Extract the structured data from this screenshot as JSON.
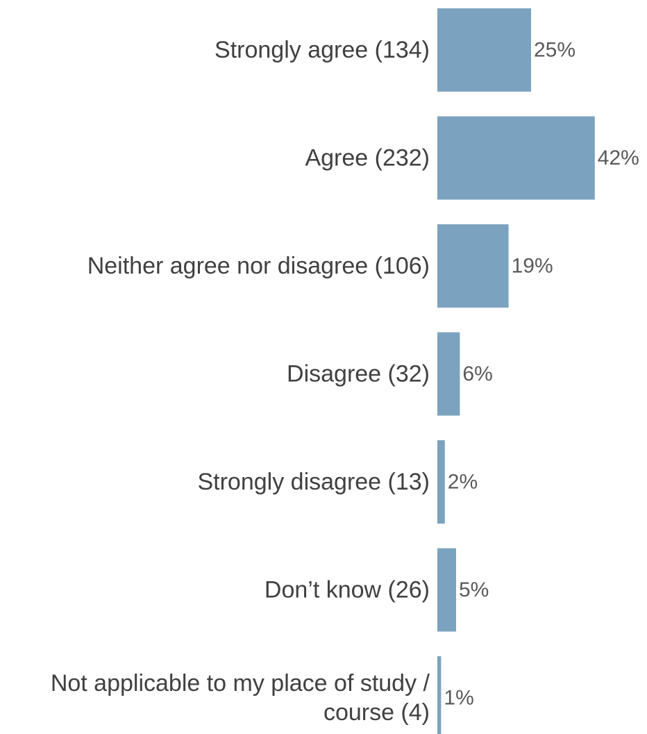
{
  "chart_data": {
    "type": "bar",
    "orientation": "horizontal",
    "bar_color": "#7ba3bf",
    "label_color": "#404040",
    "value_label_color": "#595959",
    "categories": [
      [
        "Strongly agree (134)"
      ],
      [
        "Agree (232)"
      ],
      [
        "Neither agree nor disagree (106)"
      ],
      [
        "Disagree (32)"
      ],
      [
        "Strongly disagree (13)"
      ],
      [
        "Don’t know (26)"
      ],
      [
        "Not applicable to my place of study /",
        "course (4)"
      ]
    ],
    "values": [
      25,
      42,
      19,
      6,
      2,
      5,
      1
    ],
    "value_labels": [
      "25%",
      "42%",
      "19%",
      "6%",
      "2%",
      "5%",
      "1%"
    ],
    "unit": "%",
    "grid": false,
    "legend": "none"
  }
}
